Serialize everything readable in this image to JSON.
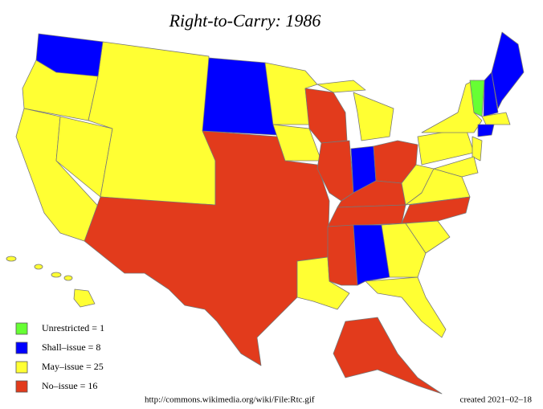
{
  "title": "Right-to-Carry: 1986",
  "legend": [
    {
      "label": "Unrestricted = 1",
      "color": "#66ff33"
    },
    {
      "label": "Shall–issue = 8",
      "color": "#0000ff"
    },
    {
      "label": "May–issue = 25",
      "color": "#ffff33"
    },
    {
      "label": "No–issue = 16",
      "color": "#e23b1c"
    }
  ],
  "source": "http://commons.wikimedia.org/wiki/File:Rtc.gif",
  "created": "created 2021–02–18"
}
